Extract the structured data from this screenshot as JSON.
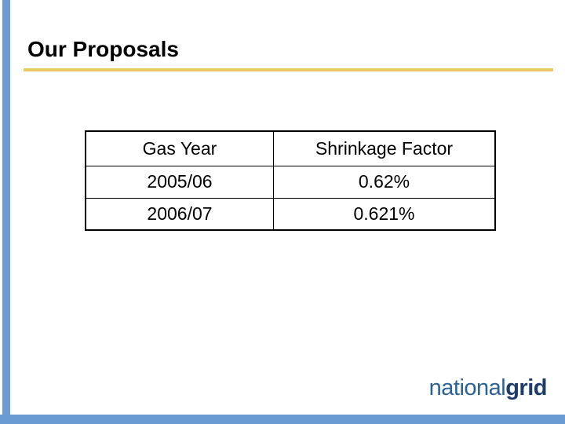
{
  "slide": {
    "title": "Our Proposals",
    "table": {
      "columns": [
        "Gas Year",
        "Shrinkage Factor"
      ],
      "rows": [
        [
          "2005/06",
          "0.62%"
        ],
        [
          "2006/07",
          "0.621%"
        ]
      ]
    },
    "logo": {
      "light": "national",
      "bold": "grid"
    },
    "colors": {
      "accent_blue": "#6a9cd3",
      "rule_gold": "#e8c964",
      "logo_light_blue": "#2d6296",
      "logo_dark_blue": "#1c3c6e",
      "text_black": "#000000",
      "background": "#ffffff"
    }
  }
}
